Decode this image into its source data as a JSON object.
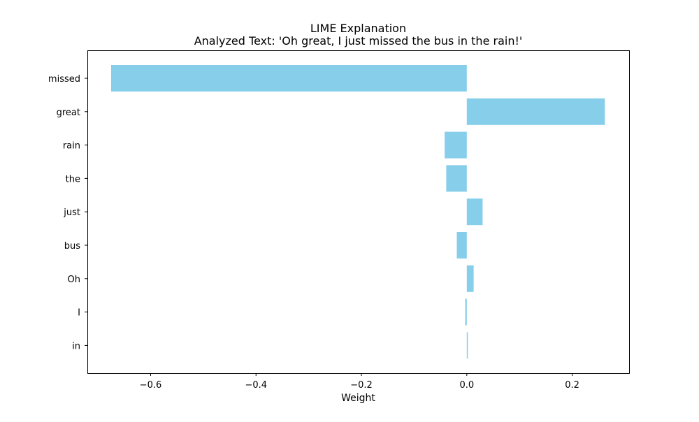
{
  "chart_data": {
    "type": "bar",
    "orientation": "horizontal",
    "title": "LIME Explanation",
    "subtitle": "Analyzed Text: 'Oh great, I just missed the bus in the rain!'",
    "xlabel": "Weight",
    "ylabel": "",
    "categories": [
      "missed",
      "great",
      "rain",
      "the",
      "just",
      "bus",
      "Oh",
      "I",
      "in"
    ],
    "values": [
      -0.675,
      0.262,
      -0.042,
      -0.039,
      0.03,
      -0.019,
      0.013,
      -0.003,
      0.002
    ],
    "xlim": [
      -0.72,
      0.308
    ],
    "xticks": [
      -0.6,
      -0.4,
      -0.2,
      0.0,
      0.2
    ],
    "xtick_labels": [
      "−0.6",
      "−0.4",
      "−0.2",
      "0.0",
      "0.2"
    ],
    "bar_color": "#87ceeb",
    "grid": false,
    "legend": "none"
  }
}
